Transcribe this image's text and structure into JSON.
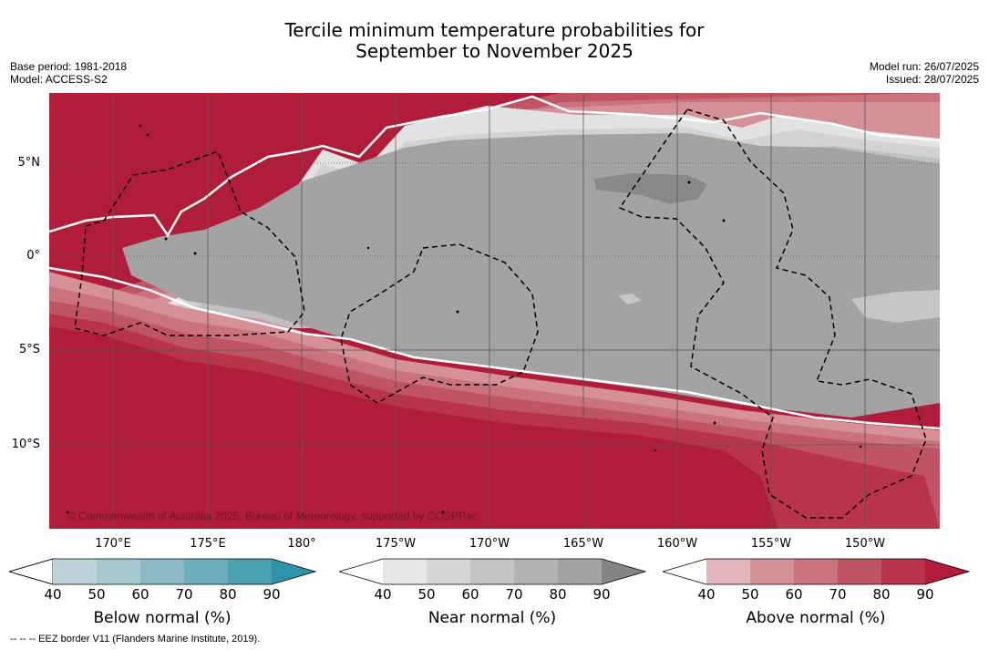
{
  "title": {
    "line1": "Tercile minimum temperature probabilities for",
    "line2": "September to November 2025"
  },
  "meta": {
    "base_period": "Base period: 1981-2018",
    "model": "Model: ACCESS-S2",
    "model_run": "Model run: 26/07/2025",
    "issued": "Issued: 28/07/2025"
  },
  "map": {
    "copyright": "© Commonwealth of Australia 2025, Bureau of Meteorology, supported by COSPPac",
    "lat_labels": [
      "5°N",
      "0°",
      "5°S",
      "10°S"
    ],
    "lon_labels": [
      "170°E",
      "175°E",
      "180°",
      "175°W",
      "170°W",
      "165°W",
      "160°W",
      "155°W",
      "150°W"
    ],
    "colors": {
      "ocean_red": "#b01d3a",
      "near_normal": "#a3a3a3",
      "near_dark": "#898989",
      "gridline": "#555555",
      "eez_border": "#000000"
    }
  },
  "colorbars": [
    {
      "title": "Below normal (%)",
      "ticks": [
        "40",
        "50",
        "60",
        "70",
        "80",
        "90"
      ],
      "colors": [
        "#ffffff",
        "#bdd3da",
        "#a6c7ce",
        "#8ab8c3",
        "#6badbb",
        "#4ca1b0",
        "#2f93a8"
      ]
    },
    {
      "title": "Near normal (%)",
      "ticks": [
        "40",
        "50",
        "60",
        "70",
        "80",
        "90"
      ],
      "colors": [
        "#ffffff",
        "#e6e6e6",
        "#d5d5d5",
        "#c4c4c4",
        "#b3b3b3",
        "#a3a3a3",
        "#858585"
      ]
    },
    {
      "title": "Above normal (%)",
      "ticks": [
        "40",
        "50",
        "60",
        "70",
        "80",
        "90"
      ],
      "colors": [
        "#ffffff",
        "#e2b4bc",
        "#d69098",
        "#ca727d",
        "#bf5563",
        "#b83449",
        "#b01d3a"
      ]
    }
  ],
  "footnote": "--  --  -- EEZ border V11 (Flanders Marine Institute, 2019)."
}
